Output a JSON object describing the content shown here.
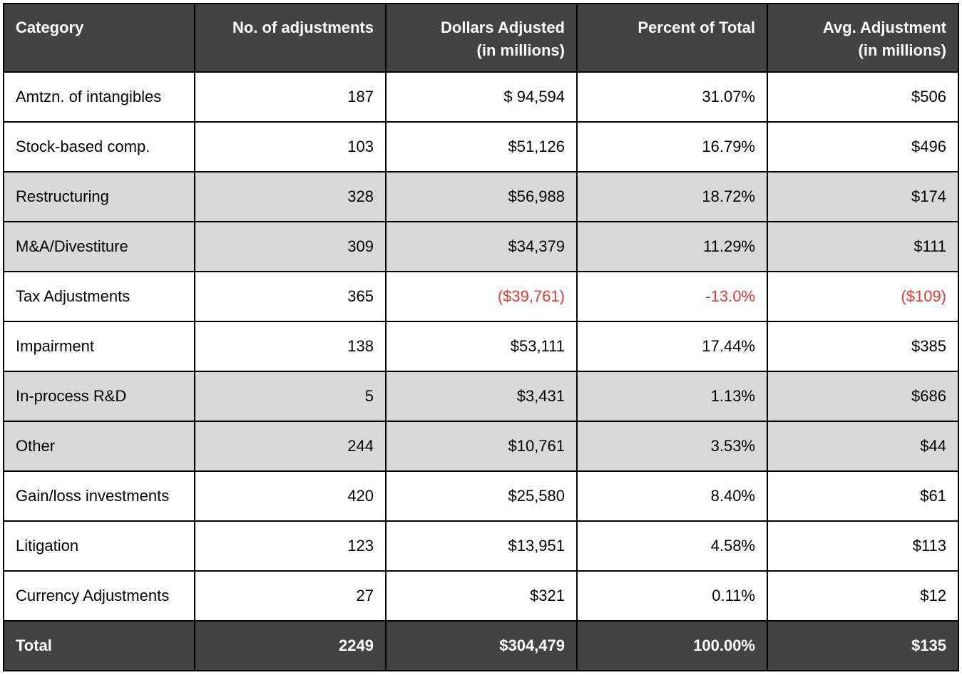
{
  "table": {
    "headers": [
      {
        "line1": "Category",
        "line2": ""
      },
      {
        "line1": "No. of adjustments",
        "line2": ""
      },
      {
        "line1": "Dollars Adjusted",
        "line2": "(in millions)"
      },
      {
        "line1": "Percent of Total",
        "line2": ""
      },
      {
        "line1": "Avg. Adjustment",
        "line2": "(in millions)"
      }
    ],
    "rows": [
      {
        "category": "Amtzn. of intangibles",
        "count": "187",
        "dollars": "$ 94,594",
        "percent": "31.07%",
        "avg": "$506"
      },
      {
        "category": "Stock-based comp.",
        "count": "103",
        "dollars": "$51,126",
        "percent": "16.79%",
        "avg": "$496"
      },
      {
        "category": "Restructuring",
        "count": "328",
        "dollars": "$56,988",
        "percent": "18.72%",
        "avg": "$174"
      },
      {
        "category": "M&A/Divestiture",
        "count": "309",
        "dollars": "$34,379",
        "percent": "11.29%",
        "avg": "$111"
      },
      {
        "category": "Tax Adjustments",
        "count": "365",
        "dollars": "($39,761)",
        "percent": "-13.0%",
        "avg": "($109)"
      },
      {
        "category": "Impairment",
        "count": "138",
        "dollars": "$53,111",
        "percent": "17.44%",
        "avg": "$385"
      },
      {
        "category": "In-process R&D",
        "count": "5",
        "dollars": "$3,431",
        "percent": "1.13%",
        "avg": "$686"
      },
      {
        "category": "Other",
        "count": "244",
        "dollars": "$10,761",
        "percent": "3.53%",
        "avg": "$44"
      },
      {
        "category": "Gain/loss investments",
        "count": "420",
        "dollars": "$25,580",
        "percent": "8.40%",
        "avg": "$61"
      },
      {
        "category": "Litigation",
        "count": "123",
        "dollars": "$13,951",
        "percent": "4.58%",
        "avg": "$113"
      },
      {
        "category": "Currency Adjustments",
        "count": "27",
        "dollars": "$321",
        "percent": "0.11%",
        "avg": "$12"
      }
    ],
    "total": {
      "category": "Total",
      "count": "2249",
      "dollars": "$304,479",
      "percent": "100.00%",
      "avg": "$135"
    },
    "colors": {
      "header_bg": "#434343",
      "header_text": "#ffffff",
      "shaded_row_bg": "#d9d9d9",
      "negative_text": "#e53935",
      "border": "#000000"
    }
  }
}
